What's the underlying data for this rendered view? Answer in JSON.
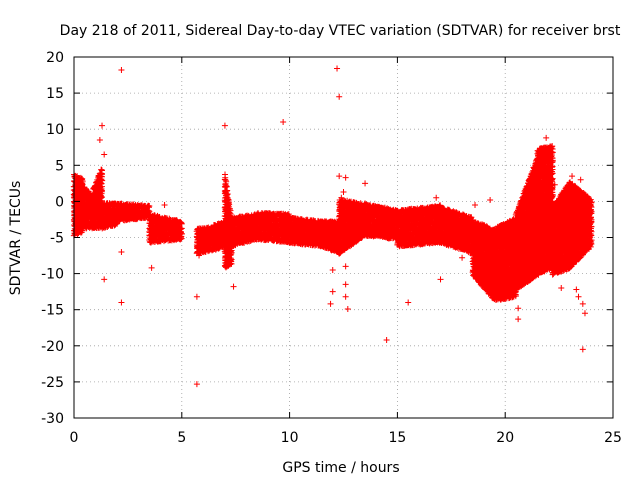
{
  "chart_data": {
    "type": "scatter",
    "title": "Day 218 of 2011, Sidereal Day-to-day VTEC variation (SDTVAR) for receiver brst",
    "xlabel": "GPS time / hours",
    "ylabel": "SDTVAR / TECUs",
    "xlim": [
      0,
      25
    ],
    "ylim": [
      -30,
      20
    ],
    "x_ticks": [
      0,
      5,
      10,
      15,
      20,
      25
    ],
    "y_ticks": [
      -30,
      -25,
      -20,
      -15,
      -10,
      -5,
      0,
      5,
      10,
      15,
      20
    ],
    "grid": true,
    "marker": "+",
    "color": "#ff0000",
    "bands": [
      {
        "x": [
          0.0,
          0.4
        ],
        "y": [
          [
            -4.5,
            3.5
          ],
          [
            -4.0,
            3.0
          ]
        ]
      },
      {
        "x": [
          0.4,
          0.9
        ],
        "y": [
          [
            -3.5,
            2.0
          ],
          [
            -3.5,
            0.5
          ]
        ]
      },
      {
        "x": [
          0.9,
          1.3
        ],
        "y": [
          [
            -3.5,
            1.5
          ],
          [
            -3.5,
            4.5
          ]
        ]
      },
      {
        "x": [
          1.3,
          2.0
        ],
        "y": [
          [
            -3.5,
            -0.5
          ],
          [
            -3.0,
            -0.5
          ]
        ]
      },
      {
        "x": [
          2.0,
          3.5
        ],
        "y": [
          [
            -2.5,
            -0.5
          ],
          [
            -2.0,
            -0.8
          ]
        ]
      },
      {
        "x": [
          3.5,
          5.0
        ],
        "y": [
          [
            -5.5,
            -2.0
          ],
          [
            -5.0,
            -3.0
          ]
        ]
      },
      {
        "x": [
          5.7,
          6.5
        ],
        "y": [
          [
            -7.0,
            -4.0
          ],
          [
            -6.5,
            -3.8
          ]
        ]
      },
      {
        "x": [
          6.5,
          7.0
        ],
        "y": [
          [
            -6.5,
            -3.5
          ],
          [
            -6.0,
            -3.0
          ]
        ]
      },
      {
        "x": [
          7.0,
          7.3
        ],
        "y": [
          [
            -9.0,
            3.5
          ],
          [
            -8.5,
            -2.5
          ]
        ]
      },
      {
        "x": [
          7.3,
          8.5
        ],
        "y": [
          [
            -6.0,
            -2.5
          ],
          [
            -5.0,
            -2.0
          ]
        ]
      },
      {
        "x": [
          8.5,
          10.0
        ],
        "y": [
          [
            -5.0,
            -1.8
          ],
          [
            -5.5,
            -2.0
          ]
        ]
      },
      {
        "x": [
          10.0,
          11.5
        ],
        "y": [
          [
            -5.5,
            -2.5
          ],
          [
            -6.0,
            -3.0
          ]
        ]
      },
      {
        "x": [
          11.5,
          12.3
        ],
        "y": [
          [
            -6.0,
            -3.0
          ],
          [
            -7.0,
            -3.0
          ]
        ]
      },
      {
        "x": [
          12.3,
          13.5
        ],
        "y": [
          [
            -7.0,
            0.0
          ],
          [
            -4.5,
            -0.5
          ]
        ]
      },
      {
        "x": [
          13.5,
          15.0
        ],
        "y": [
          [
            -4.5,
            -0.5
          ],
          [
            -5.0,
            -1.5
          ]
        ]
      },
      {
        "x": [
          15.0,
          17.0
        ],
        "y": [
          [
            -6.0,
            -1.5
          ],
          [
            -5.5,
            -0.8
          ]
        ]
      },
      {
        "x": [
          17.0,
          18.5
        ],
        "y": [
          [
            -5.5,
            -1.0
          ],
          [
            -7.0,
            -2.5
          ]
        ]
      },
      {
        "x": [
          18.5,
          19.5
        ],
        "y": [
          [
            -10.0,
            -3.0
          ],
          [
            -13.5,
            -4.0
          ]
        ]
      },
      {
        "x": [
          19.5,
          20.5
        ],
        "y": [
          [
            -13.5,
            -4.0
          ],
          [
            -13.0,
            -2.5
          ]
        ]
      },
      {
        "x": [
          20.5,
          21.5
        ],
        "y": [
          [
            -12.0,
            -2.0
          ],
          [
            -10.0,
            6.0
          ]
        ]
      },
      {
        "x": [
          21.5,
          22.2
        ],
        "y": [
          [
            -10.0,
            7.0
          ],
          [
            -9.0,
            7.5
          ]
        ]
      },
      {
        "x": [
          22.2,
          23.0
        ],
        "y": [
          [
            -10.0,
            -1.0
          ],
          [
            -9.0,
            2.5
          ]
        ]
      },
      {
        "x": [
          23.0,
          24.0
        ],
        "y": [
          [
            -9.0,
            2.5
          ],
          [
            -6.0,
            0.0
          ]
        ]
      }
    ],
    "outliers": [
      {
        "x": 1.3,
        "y": 10.5
      },
      {
        "x": 1.2,
        "y": 8.5
      },
      {
        "x": 1.4,
        "y": 6.5
      },
      {
        "x": 1.4,
        "y": -10.8
      },
      {
        "x": 2.2,
        "y": 18.2
      },
      {
        "x": 2.2,
        "y": -7.0
      },
      {
        "x": 2.2,
        "y": -14.0
      },
      {
        "x": 3.6,
        "y": -9.2
      },
      {
        "x": 4.2,
        "y": -0.5
      },
      {
        "x": 5.7,
        "y": -13.2
      },
      {
        "x": 5.7,
        "y": -25.3
      },
      {
        "x": 5.8,
        "y": -7.5
      },
      {
        "x": 7.0,
        "y": 10.5
      },
      {
        "x": 7.4,
        "y": -11.8
      },
      {
        "x": 9.7,
        "y": 11.0
      },
      {
        "x": 12.2,
        "y": 18.4
      },
      {
        "x": 12.3,
        "y": 14.5
      },
      {
        "x": 12.3,
        "y": 3.5
      },
      {
        "x": 12.4,
        "y": 0.5
      },
      {
        "x": 12.6,
        "y": 3.3
      },
      {
        "x": 12.5,
        "y": 1.3
      },
      {
        "x": 12.6,
        "y": -2.0
      },
      {
        "x": 12.0,
        "y": -9.5
      },
      {
        "x": 12.0,
        "y": -12.5
      },
      {
        "x": 11.9,
        "y": -14.2
      },
      {
        "x": 12.6,
        "y": -9.0
      },
      {
        "x": 12.6,
        "y": -13.2
      },
      {
        "x": 12.7,
        "y": -14.9
      },
      {
        "x": 12.6,
        "y": -11.5
      },
      {
        "x": 13.5,
        "y": 2.5
      },
      {
        "x": 14.5,
        "y": -19.2
      },
      {
        "x": 15.5,
        "y": -14.0
      },
      {
        "x": 16.5,
        "y": -5.8
      },
      {
        "x": 16.8,
        "y": 0.5
      },
      {
        "x": 17.0,
        "y": -10.8
      },
      {
        "x": 18.0,
        "y": -7.8
      },
      {
        "x": 18.6,
        "y": -0.5
      },
      {
        "x": 19.3,
        "y": 0.2
      },
      {
        "x": 20.6,
        "y": -14.8
      },
      {
        "x": 20.6,
        "y": -16.3
      },
      {
        "x": 21.9,
        "y": 8.8
      },
      {
        "x": 21.8,
        "y": 7.0
      },
      {
        "x": 22.3,
        "y": 2.3
      },
      {
        "x": 22.2,
        "y": 5.5
      },
      {
        "x": 22.6,
        "y": -12.0
      },
      {
        "x": 23.1,
        "y": 3.5
      },
      {
        "x": 23.5,
        "y": 3.0
      },
      {
        "x": 23.4,
        "y": -13.2
      },
      {
        "x": 23.6,
        "y": -14.2
      },
      {
        "x": 23.7,
        "y": -15.5
      },
      {
        "x": 23.6,
        "y": -20.5
      },
      {
        "x": 23.3,
        "y": -12.2
      }
    ]
  }
}
